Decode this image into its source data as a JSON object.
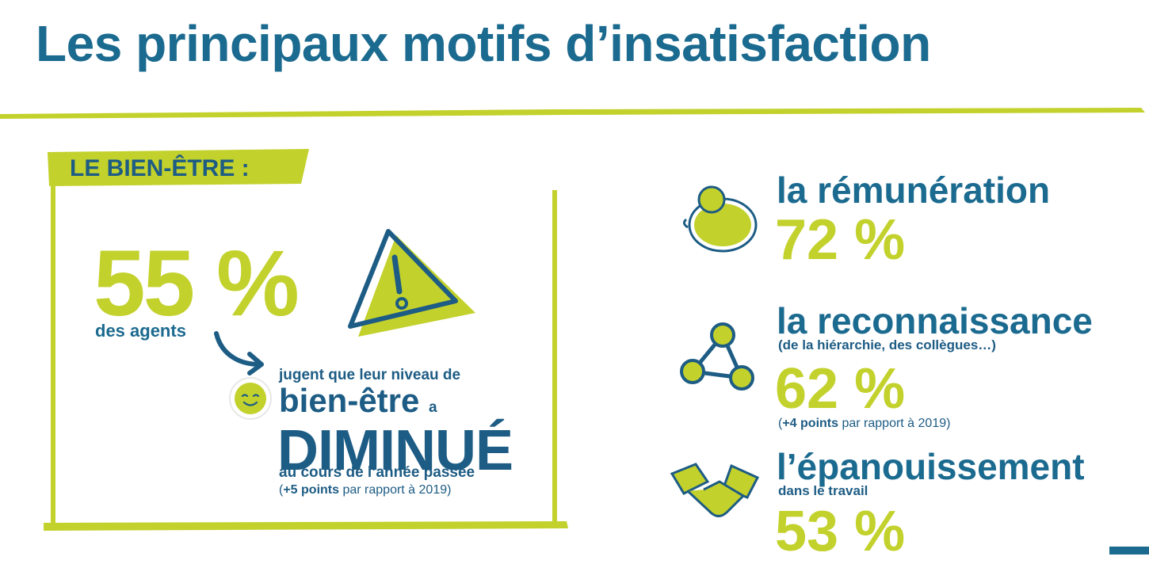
{
  "header": {
    "title": "Les principaux motifs d’insatisfaction"
  },
  "wellbeing": {
    "label": "LE BIEN-ÊTRE :",
    "stat": "55 %",
    "subject": "des agents",
    "line1": "jugent que leur niveau de",
    "line2": "bien-être",
    "line2_small": "a",
    "line3": "DIMINUÉ",
    "line4": "au cours de l’année passée",
    "note": {
      "open": "(",
      "bold": "+5 points",
      "rest": "par rapport à 2019)"
    }
  },
  "reasons": [
    {
      "title": "la rémunération",
      "value": "72 %"
    },
    {
      "title": "la reconnaissance",
      "subtitle": "(de la hiérarchie, des collègues…)",
      "value": "62 %",
      "note": {
        "open": "(",
        "bold": "+4 points",
        "rest": "par rapport à 2019)"
      }
    },
    {
      "title": "l’épanouissement",
      "subtitle": "dans le travail",
      "value": "53 %"
    }
  ]
}
